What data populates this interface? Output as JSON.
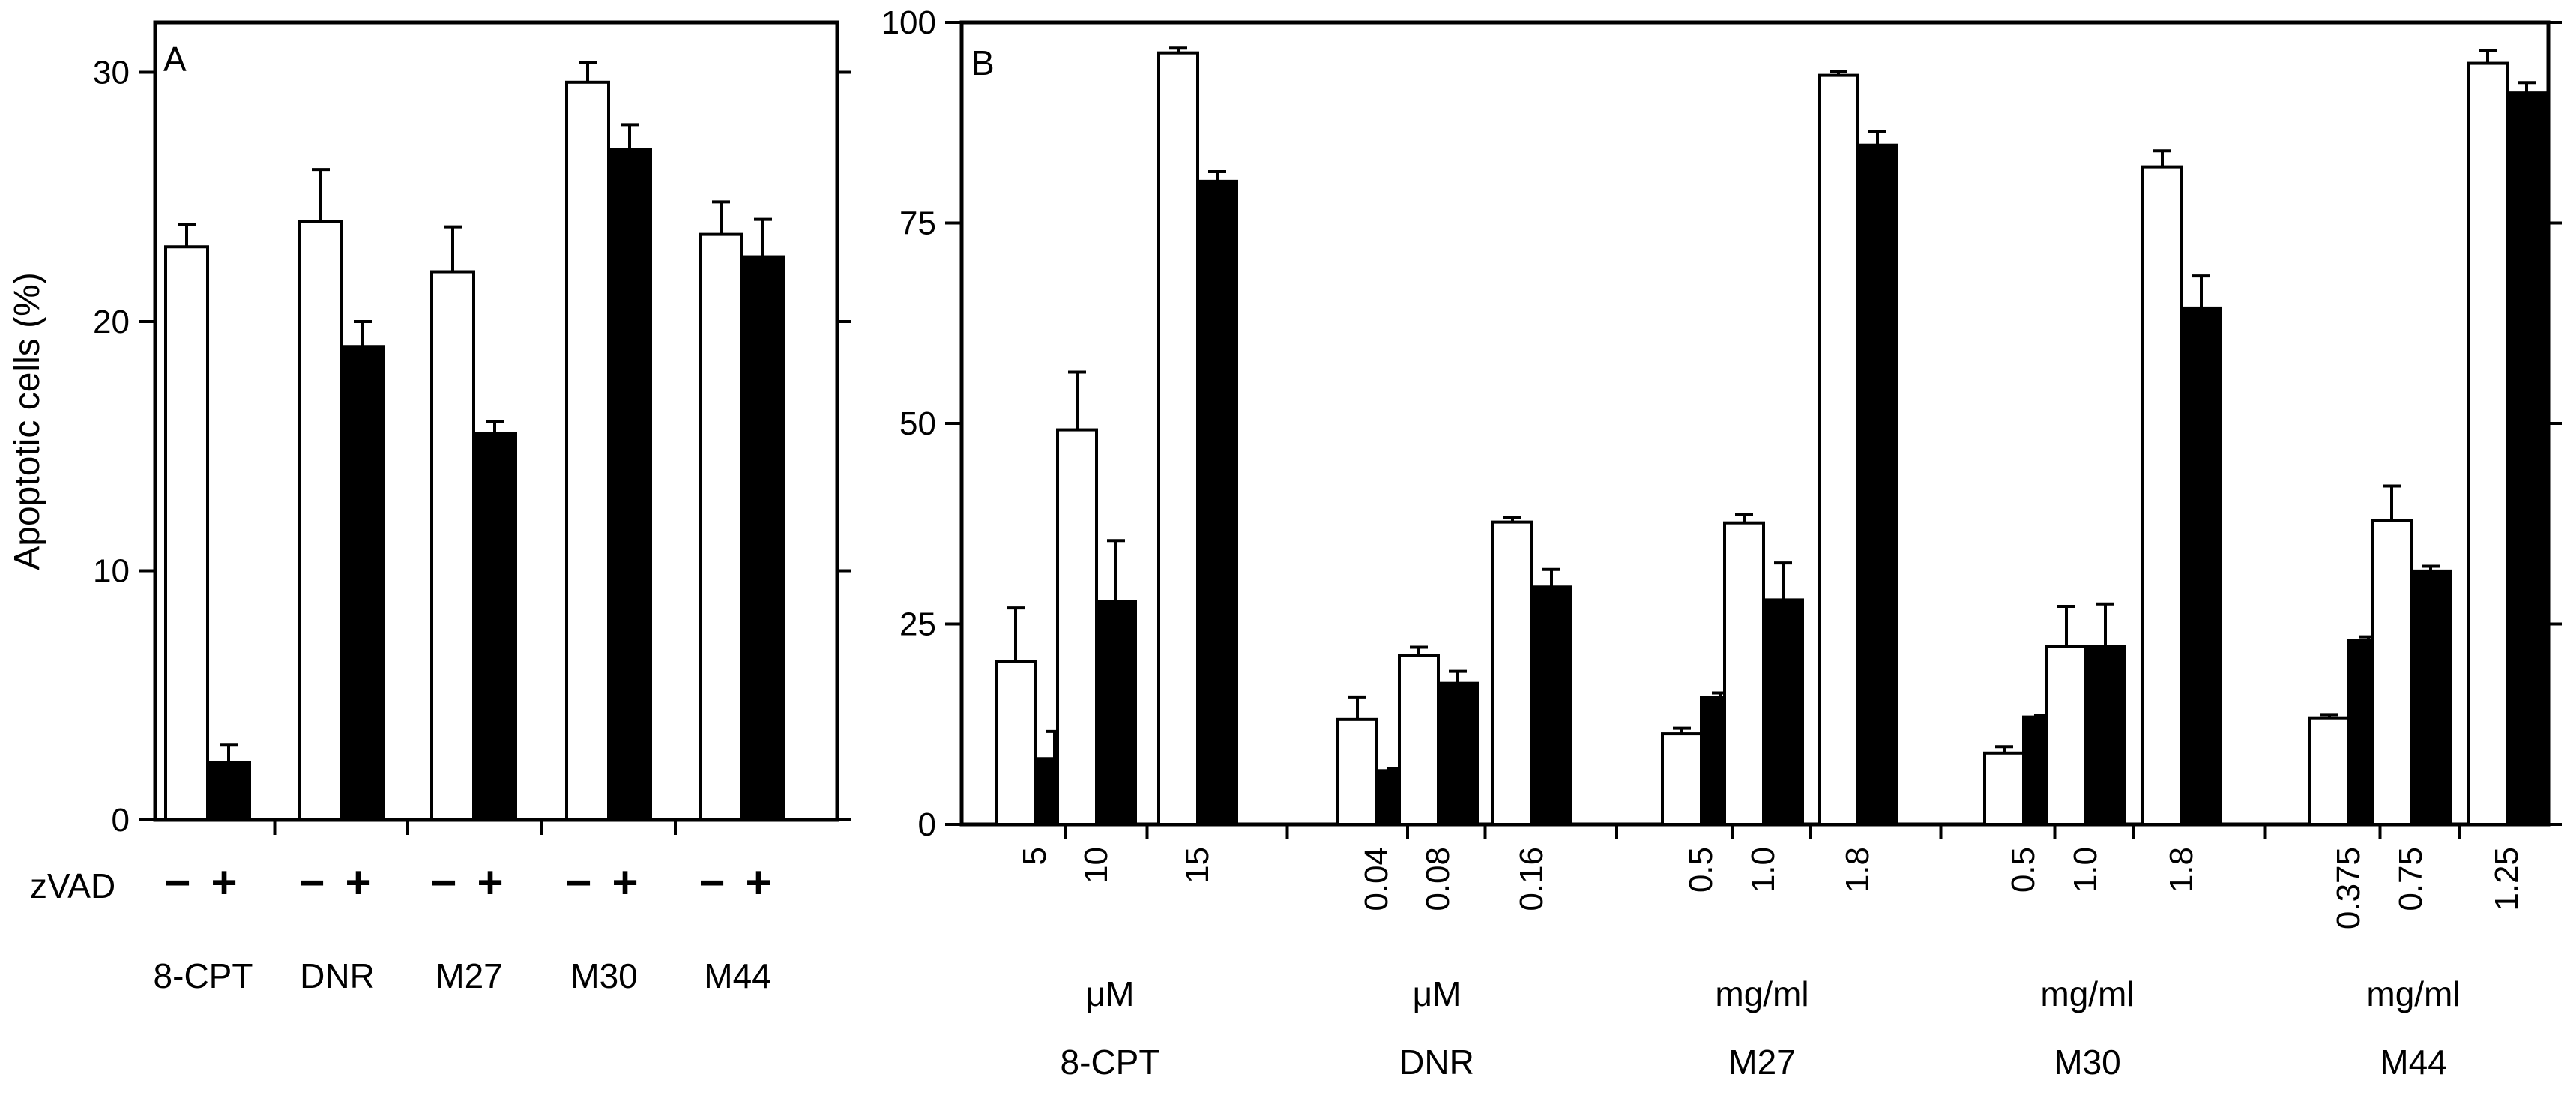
{
  "chart_data": [
    {
      "panel": "A",
      "type": "bar",
      "ylabel": "Apoptotic cells (%)",
      "ylim": [
        0,
        32
      ],
      "yticks": [
        0,
        10,
        20,
        30
      ],
      "grid": false,
      "categories": [
        "8-CPT",
        "DNR",
        "M27",
        "M30",
        "M44"
      ],
      "row_label": "zVAD",
      "sign_labels": [
        "−",
        "+"
      ],
      "series": [
        {
          "zvad": "-",
          "color": "#ffffff",
          "values": [
            23,
            24,
            22,
            29.6,
            23.5
          ],
          "errors": [
            0.9,
            2.1,
            1.8,
            0.8,
            1.3
          ]
        },
        {
          "zvad": "+",
          "color": "#000000",
          "values": [
            2.3,
            19,
            15.5,
            26.9,
            22.6
          ],
          "errors": [
            0.7,
            1.0,
            0.5,
            1.0,
            1.5
          ]
        }
      ]
    },
    {
      "panel": "B",
      "type": "bar",
      "ylim": [
        0,
        100
      ],
      "yticks": [
        0,
        25,
        50,
        75,
        100
      ],
      "grid": false,
      "groups": [
        {
          "drug": "8-CPT",
          "unit": "μM",
          "doses": [
            "5",
            "10",
            "15"
          ],
          "open": [
            20.3,
            49.2,
            96.2
          ],
          "open_err": [
            6.7,
            7.2,
            0.6
          ],
          "filled": [
            8.2,
            27.8,
            80.2
          ],
          "filled_err": [
            3.4,
            7.6,
            1.2
          ]
        },
        {
          "drug": "DNR",
          "unit": "μM",
          "doses": [
            "0.04",
            "0.08",
            "0.16"
          ],
          "open": [
            13.1,
            21.1,
            37.7
          ],
          "open_err": [
            2.8,
            1.0,
            0.6
          ],
          "filled": [
            6.7,
            17.6,
            29.6
          ],
          "filled_err": [
            0.3,
            1.5,
            2.2
          ]
        },
        {
          "drug": "M27",
          "unit": "mg/ml",
          "doses": [
            "0.5",
            "1.0",
            "1.8"
          ],
          "open": [
            11.3,
            37.6,
            93.4
          ],
          "open_err": [
            0.7,
            1.0,
            0.5
          ],
          "filled": [
            15.8,
            28.0,
            84.7
          ],
          "filled_err": [
            0.6,
            4.6,
            1.7
          ]
        },
        {
          "drug": "M30",
          "unit": "mg/ml",
          "doses": [
            "0.5",
            "1.0",
            "1.8"
          ],
          "open": [
            8.9,
            22.2,
            82.0
          ],
          "open_err": [
            0.8,
            5.0,
            2.0
          ],
          "filled": [
            13.4,
            22.2,
            64.4
          ],
          "filled_err": [
            0.2,
            5.3,
            4.0
          ]
        },
        {
          "drug": "M44",
          "unit": "mg/ml",
          "doses": [
            "0.375",
            "0.75",
            "1.25"
          ],
          "open": [
            13.3,
            37.9,
            94.9
          ],
          "open_err": [
            0.4,
            4.3,
            1.6
          ],
          "filled": [
            22.9,
            31.6,
            91.2
          ],
          "filled_err": [
            0.5,
            0.6,
            1.3
          ]
        }
      ]
    }
  ]
}
